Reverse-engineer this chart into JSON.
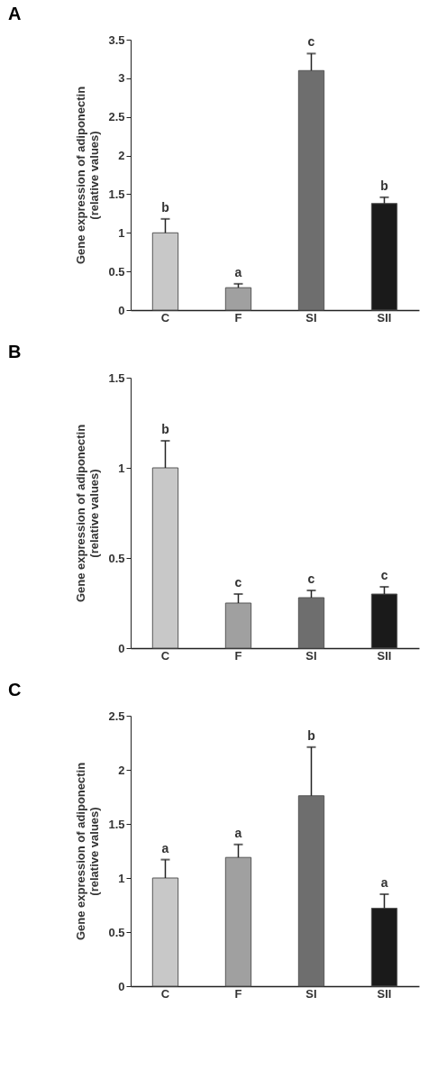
{
  "chart_data": [
    {
      "type": "bar",
      "title": "A",
      "ylabel": "Gene expression of adiponectin\n(relative values)",
      "categories": [
        "C",
        "F",
        "SI",
        "SII"
      ],
      "values": [
        1.0,
        0.29,
        3.1,
        1.38
      ],
      "colors": [
        "#c8c8c8",
        "#a0a0a0",
        "#6e6e6e",
        "#1a1a1a"
      ],
      "errors": [
        [
          1.0,
          1.18
        ],
        [
          0.29,
          0.34
        ],
        [
          3.1,
          3.32
        ],
        [
          1.38,
          1.46
        ]
      ],
      "ylim": [
        0,
        3.5
      ],
      "yticks": [
        0,
        0.5,
        1,
        1.5,
        2,
        2.5,
        3,
        3.5
      ],
      "grid": false,
      "annotations": [
        {
          "text": "b",
          "x": "C",
          "y": 1.18
        },
        {
          "text": "a",
          "x": "F",
          "y": 0.34
        },
        {
          "text": "c",
          "x": "SI",
          "y": 3.32
        },
        {
          "text": "b",
          "x": "SII",
          "y": 1.46
        }
      ]
    },
    {
      "type": "bar",
      "title": "B",
      "ylabel": "Gene expression of adiponectin\n(relative values)",
      "categories": [
        "C",
        "F",
        "SI",
        "SII"
      ],
      "values": [
        1.0,
        0.25,
        0.28,
        0.3
      ],
      "colors": [
        "#c8c8c8",
        "#a0a0a0",
        "#6e6e6e",
        "#1a1a1a"
      ],
      "errors": [
        [
          1.0,
          1.15
        ],
        [
          0.25,
          0.3
        ],
        [
          0.28,
          0.32
        ],
        [
          0.3,
          0.34
        ]
      ],
      "ylim": [
        0,
        1.5
      ],
      "yticks": [
        0,
        0.5,
        1,
        1.5
      ],
      "grid": false,
      "annotations": [
        {
          "text": "b",
          "x": "C",
          "y": 1.15
        },
        {
          "text": "c",
          "x": "F",
          "y": 0.3
        },
        {
          "text": "c",
          "x": "SI",
          "y": 0.32
        },
        {
          "text": "c",
          "x": "SII",
          "y": 0.34
        }
      ]
    },
    {
      "type": "bar",
      "title": "C",
      "ylabel": "Gene expression of adiponectin\n(relative values)",
      "categories": [
        "C",
        "F",
        "SI",
        "SII"
      ],
      "values": [
        1.0,
        1.19,
        1.76,
        0.72
      ],
      "colors": [
        "#c8c8c8",
        "#a0a0a0",
        "#6e6e6e",
        "#1a1a1a"
      ],
      "errors": [
        [
          1.0,
          1.17
        ],
        [
          1.19,
          1.31
        ],
        [
          1.76,
          2.21
        ],
        [
          0.72,
          0.85
        ]
      ],
      "ylim": [
        0,
        2.5
      ],
      "yticks": [
        0,
        0.5,
        1,
        1.5,
        2,
        2.5
      ],
      "grid": false,
      "annotations": [
        {
          "text": "a",
          "x": "C",
          "y": 1.17
        },
        {
          "text": "a",
          "x": "F",
          "y": 1.31
        },
        {
          "text": "b",
          "x": "SI",
          "y": 2.21
        },
        {
          "text": "a",
          "x": "SII",
          "y": 0.85
        }
      ]
    }
  ]
}
